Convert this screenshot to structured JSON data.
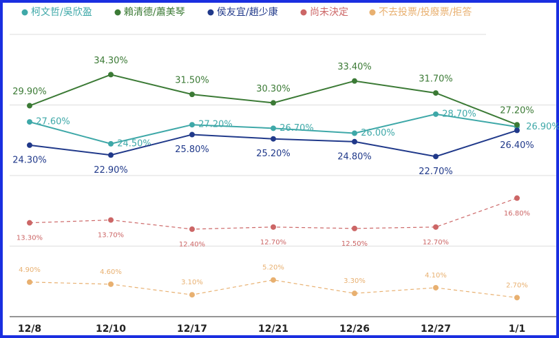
{
  "chart_data": {
    "type": "line",
    "categories": [
      "12/8",
      "12/10",
      "12/17",
      "12/21",
      "12/26",
      "12/27",
      "1/1"
    ],
    "series": [
      {
        "name": "柯文哲/吳欣盈",
        "color": "#3ea8a8",
        "dashed": false,
        "values": [
          27.6,
          24.5,
          27.2,
          26.7,
          26.0,
          28.7,
          26.9
        ],
        "value_labels": [
          "27.60%",
          "24.50%",
          "27.20%",
          "26.70%",
          "26.00%",
          "28.70%",
          "26.90%"
        ]
      },
      {
        "name": "賴清德/蕭美琴",
        "color": "#3b7a35",
        "dashed": false,
        "values": [
          29.9,
          34.3,
          31.5,
          30.3,
          33.4,
          31.7,
          27.2
        ],
        "value_labels": [
          "29.90%",
          "34.30%",
          "31.50%",
          "30.30%",
          "33.40%",
          "31.70%",
          "27.20%"
        ]
      },
      {
        "name": "侯友宜/趙少康",
        "color": "#20398a",
        "dashed": false,
        "values": [
          24.3,
          22.9,
          25.8,
          25.2,
          24.8,
          22.7,
          26.4
        ],
        "value_labels": [
          "24.30%",
          "22.90%",
          "25.80%",
          "25.20%",
          "24.80%",
          "22.70%",
          "26.40%"
        ]
      },
      {
        "name": "尚未決定",
        "color": "#cc6666",
        "dashed": true,
        "values": [
          13.3,
          13.7,
          12.4,
          12.7,
          12.5,
          12.7,
          16.8
        ],
        "value_labels": [
          "13.30%",
          "13.70%",
          "12.40%",
          "12.70%",
          "12.50%",
          "12.70%",
          "16.80%"
        ]
      },
      {
        "name": "不去投票/投廢票/拒答",
        "color": "#e8b070",
        "dashed": true,
        "values": [
          4.9,
          4.6,
          3.1,
          5.2,
          3.3,
          4.1,
          2.7
        ],
        "value_labels": [
          "4.90%",
          "4.60%",
          "3.10%",
          "5.20%",
          "3.30%",
          "4.10%",
          "2.70%"
        ]
      }
    ],
    "ylim": [
      0,
      40
    ],
    "yticks": [
      0,
      10,
      20,
      30,
      40
    ],
    "grid": true,
    "legend": "top"
  }
}
